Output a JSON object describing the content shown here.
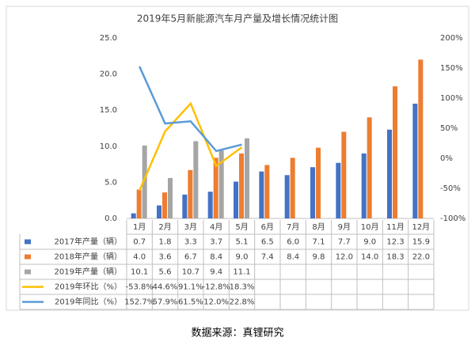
{
  "chart_data": {
    "type": "bar-line",
    "title": "2019年5月新能源汽车月产量及增长情况统计图",
    "categories": [
      "1月",
      "2月",
      "3月",
      "4月",
      "5月",
      "6月",
      "7月",
      "8月",
      "9月",
      "10月",
      "11月",
      "12月"
    ],
    "series": [
      {
        "name": "2017年产量（辆）",
        "type": "bar",
        "color": "#4472c4",
        "values": [
          0.7,
          1.8,
          3.3,
          3.7,
          5.1,
          6.5,
          6.0,
          7.1,
          7.7,
          9.0,
          12.3,
          15.9
        ],
        "value_labels": [
          "0.7",
          "1.8",
          "3.3",
          "3.7",
          "5.1",
          "6.5",
          "6.0",
          "7.1",
          "7.7",
          "9.0",
          "12.3",
          "15.9"
        ]
      },
      {
        "name": "2018年产量（辆）",
        "type": "bar",
        "color": "#ed7d31",
        "values": [
          4.0,
          3.6,
          6.7,
          8.4,
          9.0,
          7.4,
          8.4,
          9.8,
          12.0,
          14.0,
          18.3,
          22.0
        ],
        "value_labels": [
          "4.0",
          "3.6",
          "6.7",
          "8.4",
          "9.0",
          "7.4",
          "8.4",
          "9.8",
          "12.0",
          "14.0",
          "18.3",
          "22.0"
        ]
      },
      {
        "name": "2019年产量（辆）",
        "type": "bar",
        "color": "#a5a5a5",
        "values": [
          10.1,
          5.6,
          10.7,
          9.4,
          11.1,
          null,
          null,
          null,
          null,
          null,
          null,
          null
        ],
        "value_labels": [
          "10.1",
          "5.6",
          "10.7",
          "9.4",
          "11.1",
          null,
          null,
          null,
          null,
          null,
          null,
          null
        ]
      },
      {
        "name": "2019年环比（%）",
        "type": "line",
        "axis": "y2",
        "color": "#ffc000",
        "values": [
          -53.8,
          44.6,
          91.1,
          -12.8,
          18.3,
          null,
          null,
          null,
          null,
          null,
          null,
          null
        ],
        "value_labels": [
          "-53.8%",
          "44.6%",
          "91.1%",
          "-12.8%",
          "18.3%",
          null,
          null,
          null,
          null,
          null,
          null,
          null
        ]
      },
      {
        "name": "2019年同比（%）",
        "type": "line",
        "axis": "y2",
        "color": "#5b9bd5",
        "values": [
          152.7,
          57.9,
          61.5,
          12.0,
          22.8,
          null,
          null,
          null,
          null,
          null,
          null,
          null
        ],
        "value_labels": [
          "152.7%",
          "57.9%",
          "61.5%",
          "12.0%",
          "22.8%",
          null,
          null,
          null,
          null,
          null,
          null,
          null
        ]
      }
    ],
    "ylim": [
      0,
      25
    ],
    "yticks": [
      {
        "value": 0,
        "label": "0.0"
      },
      {
        "value": 5,
        "label": "5.0"
      },
      {
        "value": 10,
        "label": "10.0"
      },
      {
        "value": 15,
        "label": "15.0"
      },
      {
        "value": 20,
        "label": "20.0"
      },
      {
        "value": 25,
        "label": "25.0"
      }
    ],
    "y2lim": [
      -100,
      200
    ],
    "y2ticks": [
      {
        "value": -100,
        "label": "-100%"
      },
      {
        "value": -50,
        "label": "-50%"
      },
      {
        "value": 0,
        "label": "0%"
      },
      {
        "value": 50,
        "label": "50%"
      },
      {
        "value": 100,
        "label": "100%"
      },
      {
        "value": 150,
        "label": "150%"
      },
      {
        "value": 200,
        "label": "200%"
      }
    ],
    "grid": false,
    "source": "数据来源：真锂研究"
  }
}
